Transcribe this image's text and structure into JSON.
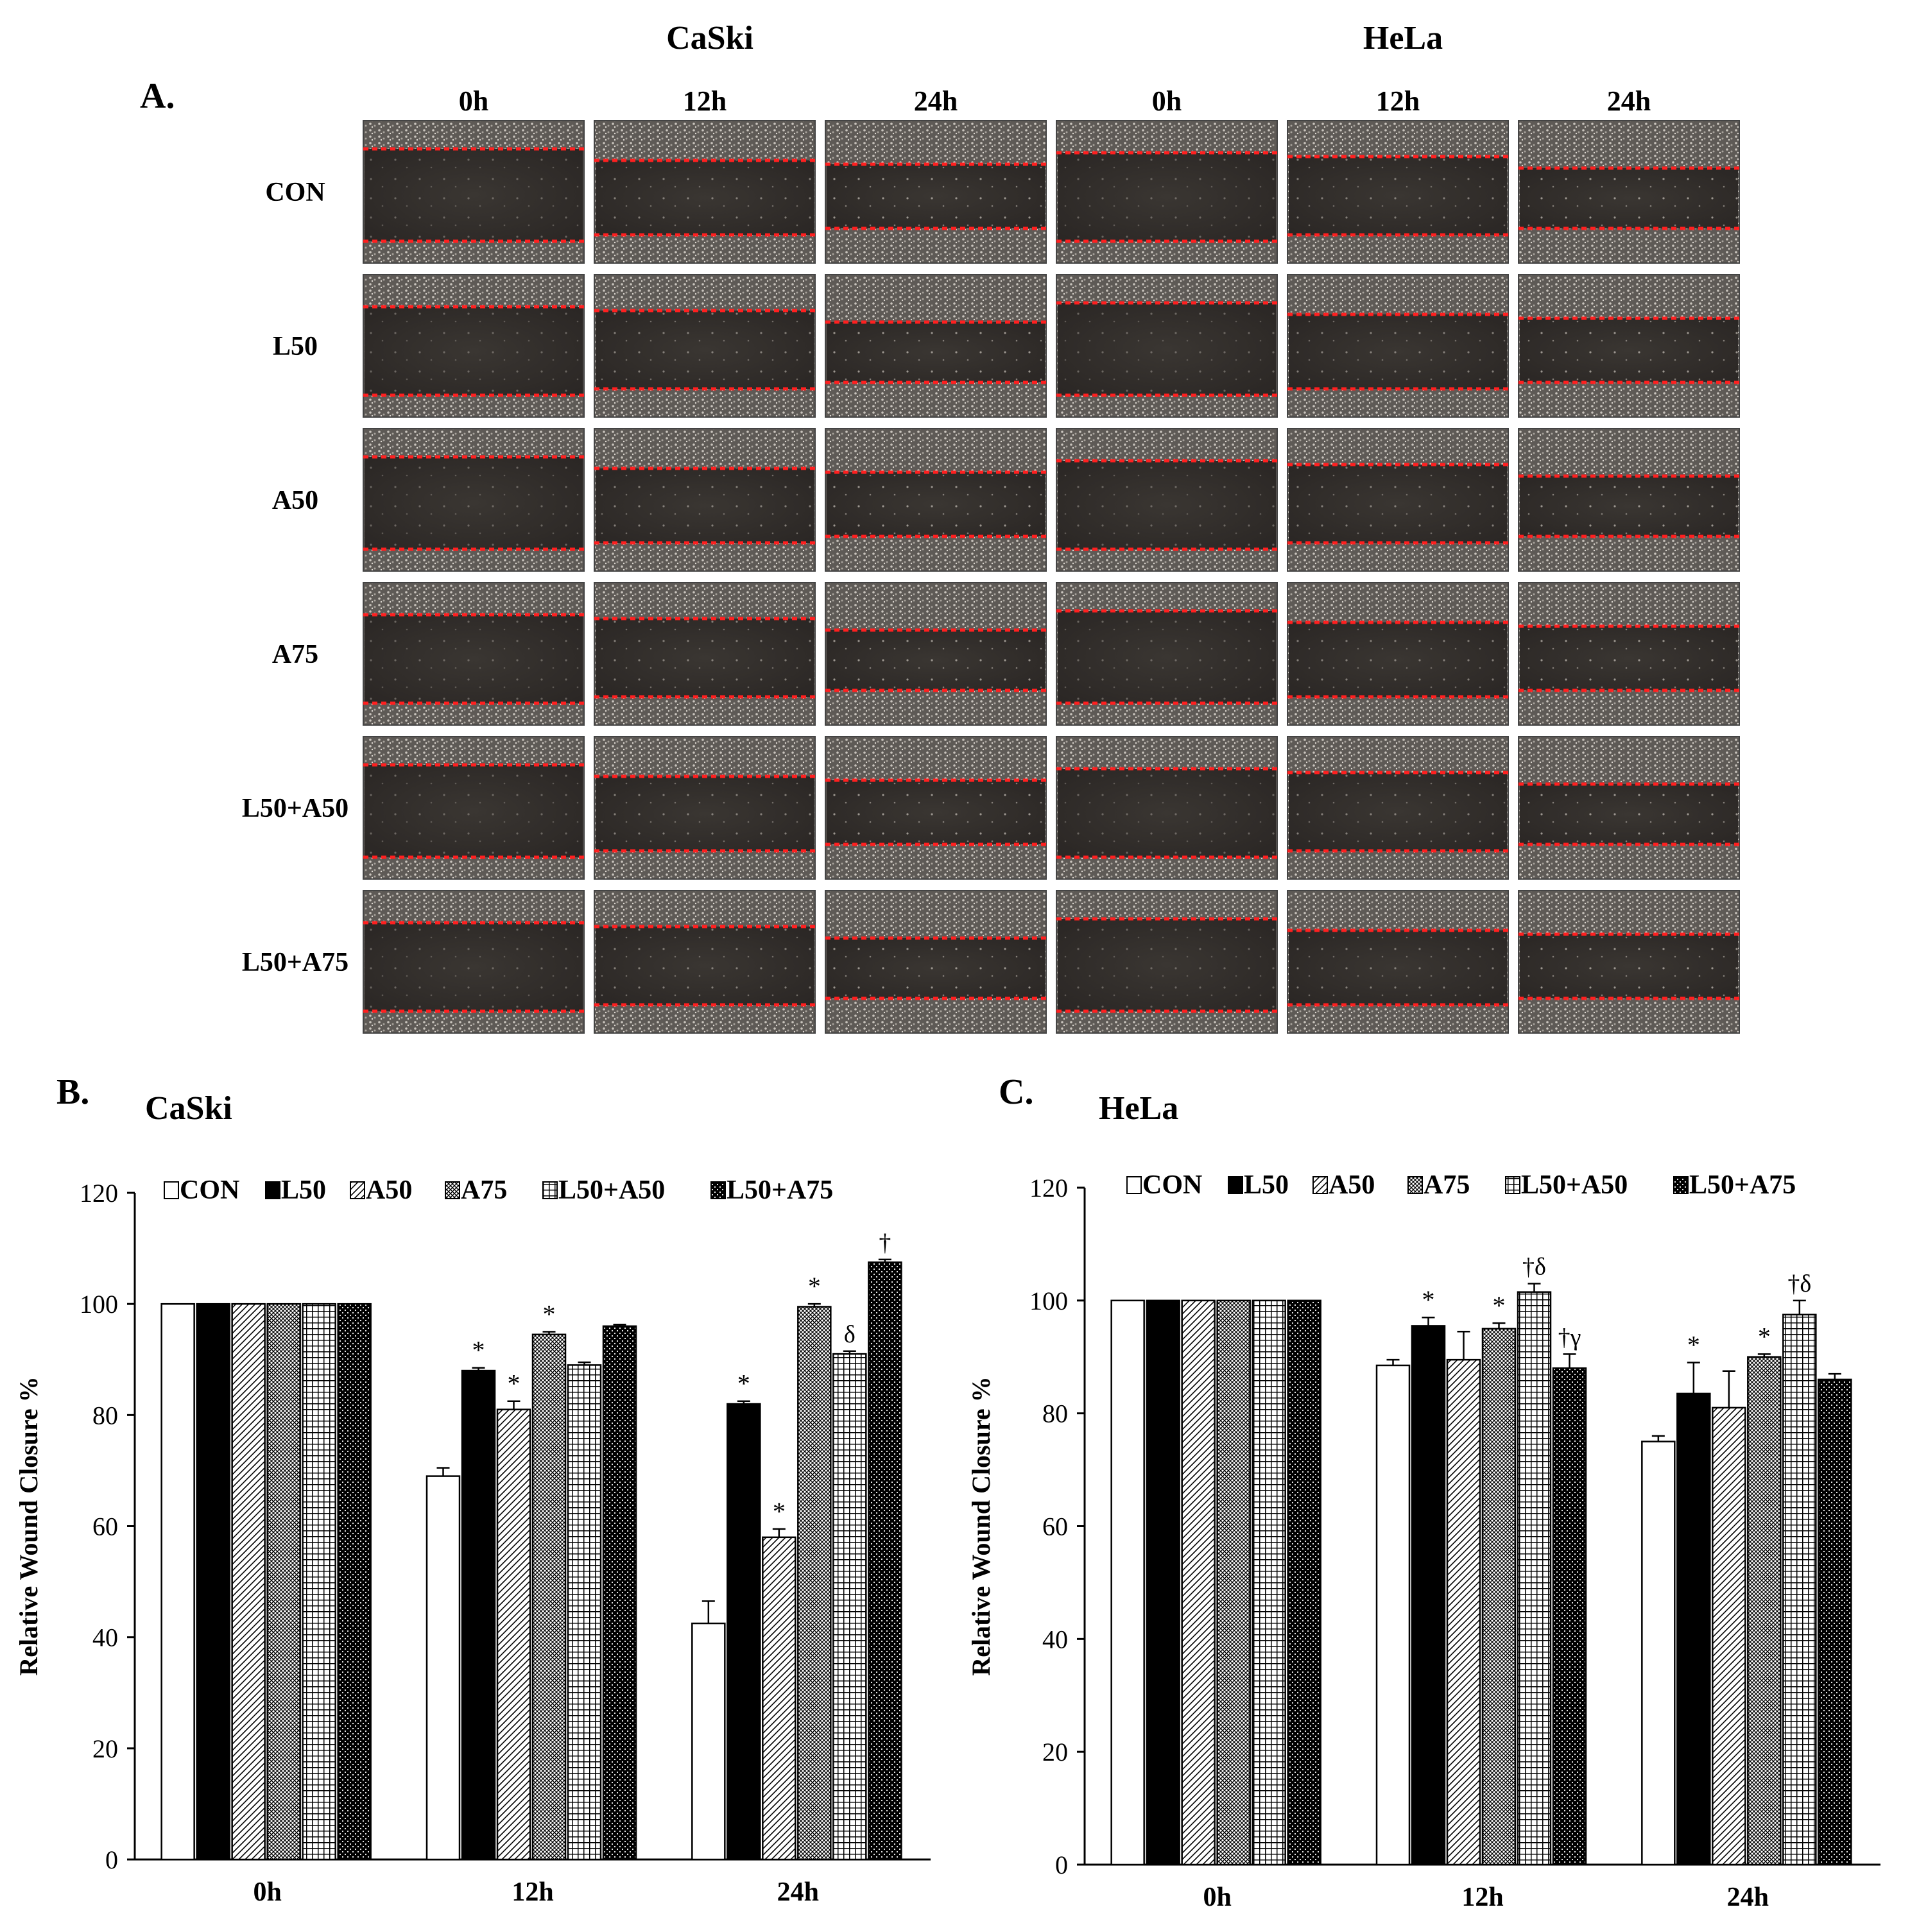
{
  "panel_a": {
    "letter": "A.",
    "cell_lines": [
      "CaSki",
      "HeLa"
    ],
    "timepoints": [
      "0h",
      "12h",
      "24h"
    ],
    "treatments": [
      "CON",
      "L50",
      "A50",
      "A75",
      "L50+A50",
      "L50+A75"
    ]
  },
  "colors": {
    "wound_line": "#ff2020",
    "bar_stroke": "#000000",
    "background": "#ffffff"
  },
  "chart_data": [
    {
      "type": "bar",
      "panel": "B.",
      "title": "CaSki",
      "ylabel": "Relative  Wound  Closure %",
      "xlabel": "",
      "ylim": [
        0,
        120
      ],
      "yticks": [
        0,
        20,
        40,
        60,
        80,
        100,
        120
      ],
      "categories": [
        "0h",
        "12h",
        "24h"
      ],
      "legend": [
        "CON",
        "L50",
        "A50",
        "A75",
        "L50+A50",
        "L50+A75"
      ],
      "series": [
        {
          "name": "CON",
          "pattern": "white",
          "values": [
            100,
            69,
            42.5
          ],
          "errors": [
            0,
            1.5,
            4
          ],
          "annotations": [
            "",
            "",
            ""
          ]
        },
        {
          "name": "L50",
          "pattern": "black",
          "values": [
            100,
            88,
            82
          ],
          "errors": [
            0,
            0.5,
            0.5
          ],
          "annotations": [
            "",
            "*",
            "*"
          ]
        },
        {
          "name": "A50",
          "pattern": "diag",
          "values": [
            100,
            81,
            58
          ],
          "errors": [
            0,
            1.5,
            1.5
          ],
          "annotations": [
            "",
            "*",
            "*"
          ]
        },
        {
          "name": "A75",
          "pattern": "cross",
          "values": [
            100,
            94.5,
            99.5
          ],
          "errors": [
            0,
            0.5,
            0.5
          ],
          "annotations": [
            "",
            "*",
            "*"
          ]
        },
        {
          "name": "L50+A50",
          "pattern": "grid",
          "values": [
            100,
            89,
            91
          ],
          "errors": [
            0,
            0.5,
            0.5
          ],
          "annotations": [
            "",
            "",
            "δ"
          ]
        },
        {
          "name": "L50+A75",
          "pattern": "dots",
          "values": [
            100,
            96,
            107.5
          ],
          "errors": [
            0,
            0.3,
            0.5
          ],
          "annotations": [
            "",
            "",
            "†"
          ]
        }
      ]
    },
    {
      "type": "bar",
      "panel": "C.",
      "title": "HeLa",
      "ylabel": "Relative  Wound  Closure %",
      "xlabel": "",
      "ylim": [
        0,
        120
      ],
      "yticks": [
        0,
        20,
        40,
        60,
        80,
        100,
        120
      ],
      "categories": [
        "0h",
        "12h",
        "24h"
      ],
      "legend": [
        "CON",
        "L50",
        "A50",
        "A75",
        "L50+A50",
        "L50+A75"
      ],
      "series": [
        {
          "name": "CON",
          "pattern": "white",
          "values": [
            100,
            88.5,
            75
          ],
          "errors": [
            0,
            1,
            1
          ],
          "annotations": [
            "",
            "",
            ""
          ]
        },
        {
          "name": "L50",
          "pattern": "black",
          "values": [
            100,
            95.5,
            83.5
          ],
          "errors": [
            0,
            1.5,
            5.5
          ],
          "annotations": [
            "",
            "*",
            "*"
          ]
        },
        {
          "name": "A50",
          "pattern": "diag",
          "values": [
            100,
            89.5,
            81
          ],
          "errors": [
            0,
            5,
            6.5
          ],
          "annotations": [
            "",
            "",
            ""
          ]
        },
        {
          "name": "A75",
          "pattern": "cross",
          "values": [
            100,
            95,
            90
          ],
          "errors": [
            0,
            1,
            0.5
          ],
          "annotations": [
            "",
            "*",
            "*"
          ]
        },
        {
          "name": "L50+A50",
          "pattern": "grid",
          "values": [
            100,
            101.5,
            97.5
          ],
          "errors": [
            0,
            1.5,
            2.5
          ],
          "annotations": [
            "",
            "†δ",
            "†δ"
          ]
        },
        {
          "name": "L50+A75",
          "pattern": "dots",
          "values": [
            100,
            88,
            86
          ],
          "errors": [
            0,
            2.5,
            1
          ],
          "annotations": [
            "",
            "†γ",
            ""
          ]
        }
      ]
    }
  ]
}
